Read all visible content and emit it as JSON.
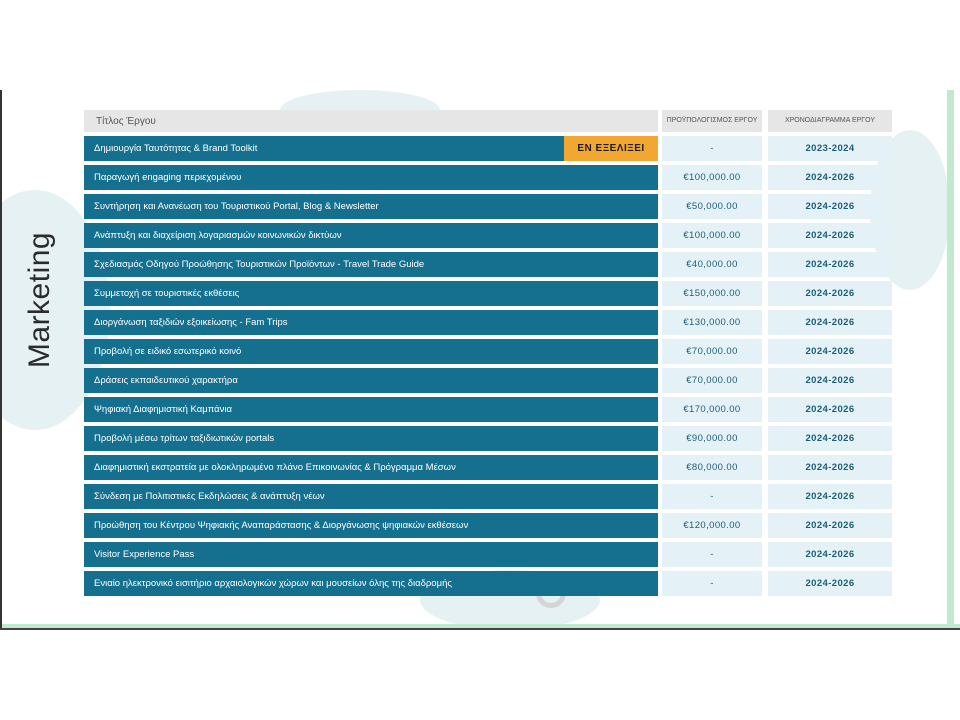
{
  "section_title": "Marketing",
  "headers": {
    "title": "Τίτλος Έργου",
    "budget": "ΠΡΟΫΠΟΛΟΓΙΣΜΟΣ ΕΡΓΟΥ",
    "schedule": "ΧΡΟΝΟΔΙΑΓΡΑΜΜΑ ΕΡΓΟΥ"
  },
  "status_badge": "ΕΝ ΕΞΕΛΙΞΕΙ",
  "rows": [
    {
      "title": "Δημιουργία Ταυτότητας & Brand Toolkit",
      "budget": "-",
      "schedule": "2023-2024"
    },
    {
      "title": "Παραγωγή engaging περιεχομένου",
      "budget": "€100,000.00",
      "schedule": "2024-2026"
    },
    {
      "title": "Συντήρηση και Ανανέωση του Τουριστικού Portal, Blog & Newsletter",
      "budget": "€50,000.00",
      "schedule": "2024-2026"
    },
    {
      "title": "Ανάπτυξη και διαχείριση λογαριασμών κοινωνικών δικτύων",
      "budget": "€100,000.00",
      "schedule": "2024-2026"
    },
    {
      "title": "Σχεδιασμός Οδηγού Προώθησης Τουριστικών Προϊόντων - Travel Trade Guide",
      "budget": "€40,000.00",
      "schedule": "2024-2026"
    },
    {
      "title": "Συμμετοχή σε τουριστικές εκθέσεις",
      "budget": "€150,000.00",
      "schedule": "2024-2026"
    },
    {
      "title": "Διοργάνωση ταξιδιών εξοικείωσης - Fam Trips",
      "budget": "€130,000.00",
      "schedule": "2024-2026"
    },
    {
      "title": "Προβολή σε ειδικό εσωτερικό κοινό",
      "budget": "€70,000.00",
      "schedule": "2024-2026"
    },
    {
      "title": "Δράσεις εκπαιδευτικού χαρακτήρα",
      "budget": "€70,000.00",
      "schedule": "2024-2026"
    },
    {
      "title": "Ψηφιακή Διαφημιστική Καμπάνια",
      "budget": "€170,000.00",
      "schedule": "2024-2026"
    },
    {
      "title": "Προβολή μέσω τρίτων ταξιδιωτικών portals",
      "budget": "€90,000.00",
      "schedule": "2024-2026"
    },
    {
      "title": "Διαφημιστική εκστρατεία με ολοκληρωμένο πλάνο Επικοινωνίας & Πρόγραμμα Μέσων",
      "budget": "€80,000.00",
      "schedule": "2024-2026"
    },
    {
      "title": "Σύνδεση με Πολιτιστικές Εκδηλώσεις & ανάπτυξη νέων",
      "budget": "-",
      "schedule": "2024-2026"
    },
    {
      "title": "Προώθηση του Κέντρου Ψηφιακής Αναπαράστασης & Διοργάνωσης ψηφιακών εκθέσεων",
      "budget": "€120,000.00",
      "schedule": "2024-2026"
    },
    {
      "title": "Visitor Experience Pass",
      "budget": "-",
      "schedule": "2024-2026"
    },
    {
      "title": "Ενιαίο ηλεκτρονικό εισιτήριο αρχαιολογικών χώρων και μουσείων όλης της διαδρομής",
      "budget": "-",
      "schedule": "2024-2026"
    }
  ],
  "colors": {
    "row_title_bg": "#15708f",
    "value_cell_bg": "#e4f2f8",
    "badge_bg": "#f2a733",
    "header_bg": "#e6e6e6"
  }
}
